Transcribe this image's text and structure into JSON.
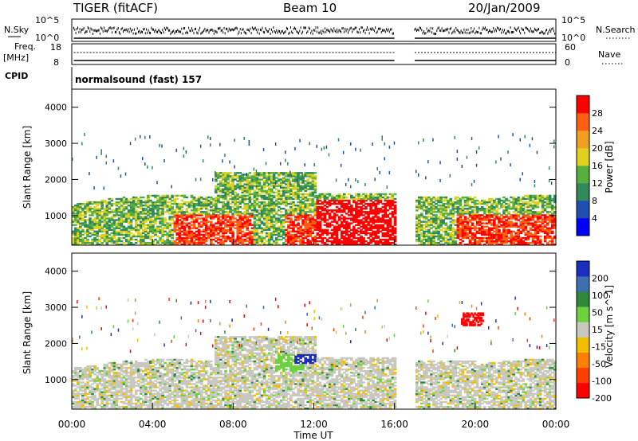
{
  "header": {
    "radar": "TIGER (fitACF)",
    "beam": "Beam 10",
    "date": "20/Jan/2009"
  },
  "meta_panels": {
    "nsky_label": "N.Sky",
    "nsearch_label": "N.Search",
    "n_ticks_left": [
      "10^5",
      "10^0"
    ],
    "n_ticks_right": [
      "10^5",
      "10^0"
    ],
    "freq_label_1": "Freq.",
    "freq_label_2": "[MHz]",
    "freq_ticks": [
      "18",
      "8"
    ],
    "nave_label": "Nave",
    "nave_ticks": [
      "60",
      "0"
    ],
    "cpid_label": "CPID",
    "cpid_text": "normalsound (fast) 157"
  },
  "colors": {
    "power_scale": [
      "#0000ff",
      "#1f4fb0",
      "#2e8a5a",
      "#55b040",
      "#e0d020",
      "#f0a020",
      "#ff6010",
      "#ff0000"
    ],
    "velocity_scale": [
      "#1a2fbf",
      "#3e6fb0",
      "#2e8a3a",
      "#6fd040",
      "#c8c8c0",
      "#f0c000",
      "#ff8000",
      "#ff4000",
      "#ff0000"
    ]
  },
  "chart_data": [
    {
      "type": "heatmap",
      "name": "power",
      "ylabel": "Slant Range [km]",
      "yticks": [
        "4000",
        "3000",
        "2000",
        "1000"
      ],
      "ylim": [
        180,
        4500
      ],
      "xlim_hours": [
        0,
        24
      ],
      "data_gap_hours": [
        16.0,
        17.0
      ],
      "colorbar_label": "Power [dB]",
      "colorbar_ticks": [
        "28",
        "24",
        "20",
        "16",
        "12",
        "8",
        "4"
      ],
      "value_range": [
        0,
        30
      ]
    },
    {
      "type": "heatmap",
      "name": "velocity",
      "ylabel": "Slant Range [km]",
      "yticks": [
        "4000",
        "3000",
        "2000",
        "1000"
      ],
      "ylim": [
        180,
        4500
      ],
      "xlim_hours": [
        0,
        24
      ],
      "data_gap_hours": [
        16.0,
        17.0
      ],
      "colorbar_label": "Velocity [m s^-1]",
      "colorbar_ticks": [
        "200",
        "100",
        "50",
        "15",
        "-15",
        "-50",
        "-100",
        "-200"
      ]
    }
  ],
  "x_axis": {
    "ticks": [
      "00:00",
      "04:00",
      "08:00",
      "12:00",
      "16:00",
      "20:00",
      "00:00"
    ],
    "label": "Time UT"
  }
}
